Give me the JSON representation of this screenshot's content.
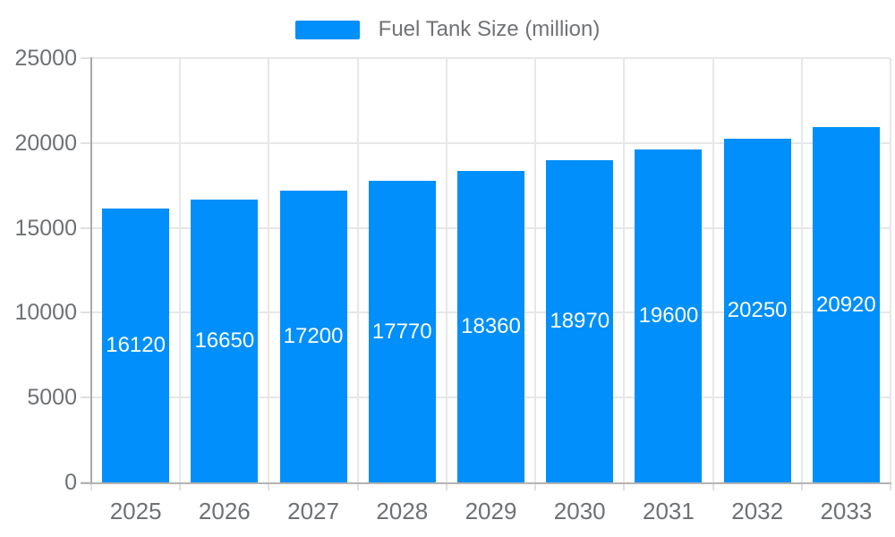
{
  "chart_data": {
    "type": "bar",
    "title": "",
    "xlabel": "",
    "ylabel": "",
    "categories": [
      "2025",
      "2026",
      "2027",
      "2028",
      "2029",
      "2030",
      "2031",
      "2032",
      "2033"
    ],
    "series": [
      {
        "name": "Fuel Tank Size (million)",
        "values": [
          16120,
          16650,
          17200,
          17770,
          18360,
          18970,
          19600,
          20250,
          20920
        ]
      }
    ],
    "value_labels": [
      "16120",
      "16650",
      "17200",
      "17770",
      "18360",
      "18970",
      "19600",
      "20250",
      "20920"
    ],
    "ylim": [
      0,
      25000
    ],
    "yticks": [
      0,
      5000,
      10000,
      15000,
      20000,
      25000
    ],
    "grid": true,
    "legend_position": "top",
    "data_label_position": "inside-center",
    "colors": {
      "bar": "#008FFB",
      "grid": "#e7e7e7",
      "axis_line_x": "#b3b3b3",
      "axis_line_y": "#a8a8a8",
      "tick": "#e0e0e0",
      "tick_label": "#6e7174",
      "legend_label": "#707275",
      "value_label": "#ffffff",
      "background": "#ffffff"
    }
  }
}
